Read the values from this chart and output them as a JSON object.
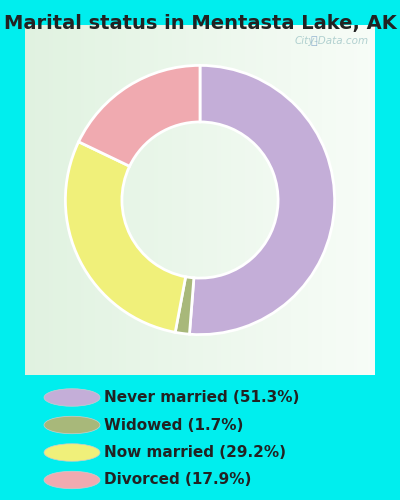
{
  "title": "Marital status in Mentasta Lake, AK",
  "outer_bg_color": "#00eeee",
  "chart_bg_color": "#e8f5ee",
  "slices": [
    51.3,
    1.7,
    29.2,
    17.9
  ],
  "colors": [
    "#c4aed8",
    "#a8b87a",
    "#f0f07a",
    "#f0aab0"
  ],
  "labels": [
    "Never married (51.3%)",
    "Widowed (1.7%)",
    "Now married (29.2%)",
    "Divorced (17.9%)"
  ],
  "legend_colors": [
    "#c4aed8",
    "#a8b87a",
    "#f0f07a",
    "#f0aab0"
  ],
  "donut_width": 0.42,
  "start_angle": 90,
  "watermark": "City-Data.com",
  "title_fontsize": 14,
  "legend_fontsize": 11
}
